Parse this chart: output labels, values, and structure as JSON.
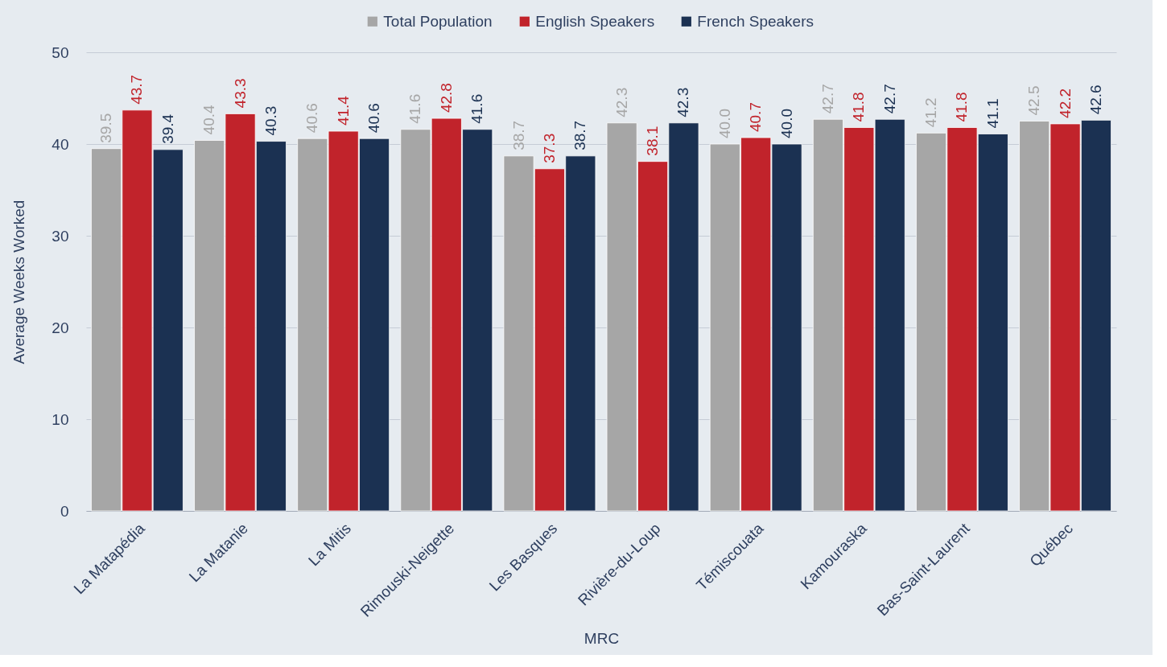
{
  "chart_data": {
    "type": "bar",
    "xlabel": "MRC",
    "ylabel": "Average Weeks Worked",
    "categories": [
      "La Matapédia",
      "La Matanie",
      "La Mitis",
      "Rimouski-Neigette",
      "Les Basques",
      "Rivière-du-Loup",
      "Témiscouata",
      "Kamouraska",
      "Bas-Saint-Laurent",
      "Québec"
    ],
    "series": [
      {
        "name": "Total Population",
        "color": "#a6a6a6",
        "values": [
          39.5,
          40.4,
          40.6,
          41.6,
          38.7,
          42.3,
          40.0,
          42.7,
          41.2,
          42.5
        ],
        "value_labels": [
          "39.5",
          "40.4",
          "40.6",
          "41.6",
          "38.7",
          "42.3",
          "40.0",
          "42.7",
          "41.2",
          "42.5"
        ]
      },
      {
        "name": "English Speakers",
        "color": "#c1232b",
        "values": [
          43.7,
          43.3,
          41.4,
          42.8,
          37.3,
          38.1,
          40.7,
          41.8,
          41.8,
          42.2
        ],
        "value_labels": [
          "43.7",
          "43.3",
          "41.4",
          "42.8",
          "37.3",
          "38.1",
          "40.7",
          "41.8",
          "41.8",
          "42.2"
        ]
      },
      {
        "name": "French Speakers",
        "color": "#1b3152",
        "values": [
          39.4,
          40.3,
          40.6,
          41.6,
          38.7,
          42.3,
          40.0,
          42.7,
          41.1,
          42.6
        ],
        "value_labels": [
          "39.4",
          "40.3",
          "40.6",
          "41.6",
          "38.7",
          "42.3",
          "40.0",
          "42.7",
          "41.1",
          "42.6"
        ]
      }
    ],
    "ylim": [
      0,
      50
    ],
    "yticks": [
      0,
      10,
      20,
      30,
      40,
      50
    ],
    "grid": "y",
    "legend": "top"
  }
}
